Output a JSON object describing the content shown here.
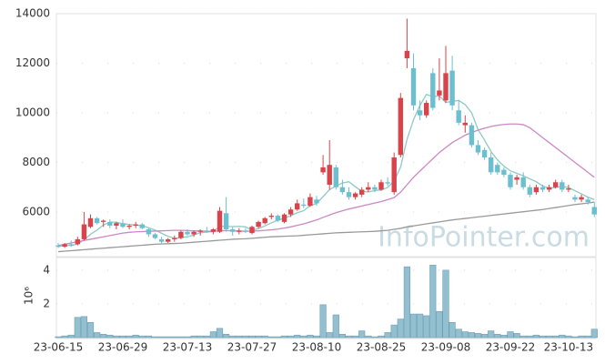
{
  "chart_data": {
    "type": "candlestick",
    "watermark": "InfoPointer.com",
    "categories": [
      "23-06-15",
      null,
      null,
      null,
      null,
      null,
      null,
      null,
      null,
      null,
      "23-06-29",
      null,
      null,
      null,
      null,
      null,
      null,
      null,
      null,
      null,
      "23-07-13",
      null,
      null,
      null,
      null,
      null,
      null,
      null,
      null,
      null,
      "23-07-27",
      null,
      null,
      null,
      null,
      null,
      null,
      null,
      null,
      null,
      "23-08-10",
      null,
      null,
      null,
      null,
      null,
      null,
      null,
      null,
      null,
      "23-08-25",
      null,
      null,
      null,
      null,
      null,
      null,
      null,
      null,
      null,
      "23-09-08",
      null,
      null,
      null,
      null,
      null,
      null,
      null,
      null,
      null,
      "23-09-22",
      null,
      null,
      null,
      null,
      null,
      null,
      null,
      null,
      "23-10-13",
      null,
      null,
      null,
      null
    ],
    "open": [
      4650,
      4600,
      4700,
      4700,
      4900,
      5400,
      5750,
      5600,
      5600,
      5450,
      5550,
      5400,
      5450,
      5500,
      5300,
      5100,
      4900,
      4800,
      4900,
      4950,
      5200,
      5100,
      5200,
      5250,
      5200,
      5200,
      5950,
      5300,
      5200,
      5250,
      5150,
      5400,
      5550,
      5800,
      5850,
      5600,
      5900,
      6100,
      6300,
      6250,
      6500,
      7600,
      7100,
      7800,
      7000,
      6800,
      6600,
      6700,
      6900,
      7000,
      6900,
      7200,
      6800,
      8300,
      12200,
      11800,
      10100,
      9900,
      11600,
      10700,
      10500,
      11700,
      10100,
      9500,
      9500,
      8700,
      8500,
      8200,
      7900,
      7700,
      7500,
      7300,
      7400,
      7000,
      6800,
      7000,
      6900,
      7000,
      7200,
      6900,
      6600,
      6500,
      6500,
      6200
    ],
    "high": [
      4750,
      4750,
      4850,
      5000,
      6000,
      5900,
      5800,
      5700,
      5700,
      5600,
      5700,
      5500,
      5600,
      5550,
      5350,
      5150,
      5000,
      4950,
      5050,
      5250,
      5300,
      5250,
      5300,
      5400,
      5350,
      6200,
      6600,
      5400,
      5350,
      5350,
      5450,
      5650,
      5800,
      5950,
      5900,
      5950,
      6200,
      6500,
      6550,
      6750,
      6650,
      8300,
      8900,
      7900,
      7300,
      7000,
      6800,
      7000,
      7200,
      7100,
      7300,
      7400,
      8400,
      10800,
      13800,
      12400,
      10500,
      10500,
      11800,
      12200,
      12700,
      12300,
      10500,
      9900,
      9600,
      8900,
      8600,
      8400,
      8000,
      7800,
      7600,
      7500,
      7600,
      7100,
      7100,
      7100,
      7100,
      7300,
      7300,
      7100,
      6700,
      6700,
      6600,
      6400
    ],
    "low": [
      4550,
      4550,
      4600,
      4650,
      4850,
      5350,
      5500,
      5400,
      5350,
      5300,
      5350,
      5300,
      5350,
      5300,
      5000,
      4900,
      4700,
      4750,
      4800,
      4900,
      5050,
      5000,
      5050,
      5150,
      5100,
      5150,
      5200,
      5050,
      5100,
      5150,
      5100,
      5350,
      5500,
      5700,
      5600,
      5550,
      5800,
      6050,
      6150,
      6200,
      6250,
      7500,
      6900,
      6900,
      6700,
      6500,
      6500,
      6600,
      6800,
      6800,
      6850,
      7050,
      6700,
      8200,
      11800,
      10100,
      9700,
      9800,
      10100,
      10500,
      10400,
      10100,
      9500,
      9200,
      8600,
      8300,
      8100,
      7500,
      7500,
      7400,
      6900,
      7100,
      6900,
      6600,
      6700,
      6800,
      6800,
      6950,
      6800,
      6800,
      6400,
      6400,
      6300,
      5800
    ],
    "close": [
      4600,
      4700,
      4650,
      4900,
      5500,
      5750,
      5550,
      5650,
      5450,
      5550,
      5400,
      5450,
      5500,
      5350,
      5100,
      4950,
      4800,
      4900,
      4950,
      5200,
      5100,
      5200,
      5250,
      5200,
      5300,
      6050,
      5300,
      5200,
      5250,
      5200,
      5400,
      5600,
      5750,
      5850,
      5650,
      5900,
      6100,
      6350,
      6250,
      6600,
      6350,
      7800,
      7900,
      7000,
      6800,
      6600,
      6750,
      6900,
      7000,
      6900,
      7200,
      7150,
      8200,
      10600,
      12500,
      10300,
      9900,
      10400,
      10200,
      10900,
      11600,
      10300,
      9600,
      9600,
      8700,
      8400,
      8200,
      7600,
      7600,
      7500,
      7000,
      7400,
      7000,
      6700,
      7000,
      6900,
      7000,
      7200,
      6900,
      6950,
      6500,
      6600,
      6400,
      5900
    ],
    "up_color": "#d9434a",
    "down_color": "#6cbfcf",
    "moving_averages": [
      {
        "color": "#8ccac4",
        "values": [
          4600,
          4650,
          4650,
          4710,
          4870,
          5100,
          5270,
          5480,
          5590,
          5590,
          5520,
          5500,
          5470,
          5450,
          5360,
          5270,
          5140,
          5020,
          4940,
          4970,
          5000,
          5070,
          5170,
          5190,
          5210,
          5420,
          5420,
          5410,
          5420,
          5400,
          5270,
          5330,
          5440,
          5560,
          5670,
          5750,
          5850,
          5970,
          6050,
          6260,
          6340,
          6620,
          6900,
          7050,
          7170,
          7220,
          7020,
          6830,
          6810,
          6860,
          6890,
          6990,
          7250,
          7810,
          8930,
          9720,
          10300,
          10740,
          10650,
          10680,
          10420,
          10460,
          10500,
          10330,
          10000,
          9320,
          8900,
          8440,
          8100,
          7850,
          7660,
          7560,
          7460,
          7340,
          7220,
          7050,
          6960,
          6990,
          7030,
          6990,
          6860,
          6730,
          6600,
          6500
        ]
      },
      {
        "color": "#cc88c4",
        "values": [
          4650,
          4700,
          4750,
          4800,
          4850,
          4900,
          4950,
          5000,
          5050,
          5100,
          5150,
          5180,
          5200,
          5210,
          5220,
          5230,
          5240,
          5250,
          5260,
          5260,
          5250,
          5240,
          5230,
          5220,
          5220,
          5240,
          5250,
          5240,
          5230,
          5220,
          5230,
          5240,
          5260,
          5280,
          5310,
          5350,
          5400,
          5460,
          5520,
          5600,
          5680,
          5780,
          5880,
          5970,
          6050,
          6120,
          6180,
          6240,
          6300,
          6360,
          6420,
          6500,
          6580,
          6800,
          7100,
          7400,
          7650,
          7900,
          8150,
          8400,
          8600,
          8800,
          8950,
          9100,
          9200,
          9300,
          9380,
          9450,
          9500,
          9530,
          9550,
          9550,
          9520,
          9400,
          9200,
          9000,
          8800,
          8600,
          8400,
          8200,
          8000,
          7800,
          7600,
          7400
        ]
      },
      {
        "color": "#999999",
        "values": [
          4400,
          4420,
          4440,
          4460,
          4480,
          4500,
          4520,
          4540,
          4560,
          4580,
          4600,
          4620,
          4640,
          4660,
          4680,
          4700,
          4710,
          4720,
          4730,
          4740,
          4760,
          4780,
          4800,
          4820,
          4840,
          4860,
          4880,
          4900,
          4910,
          4920,
          4940,
          4960,
          4980,
          5000,
          5010,
          5020,
          5030,
          5040,
          5060,
          5080,
          5100,
          5120,
          5140,
          5160,
          5170,
          5180,
          5190,
          5200,
          5210,
          5220,
          5240,
          5260,
          5300,
          5340,
          5400,
          5440,
          5480,
          5520,
          5560,
          5600,
          5640,
          5680,
          5710,
          5740,
          5770,
          5800,
          5830,
          5860,
          5890,
          5920,
          5950,
          5980,
          6010,
          6040,
          6070,
          6100,
          6140,
          6180,
          6220,
          6260,
          6300,
          6330,
          6360,
          6400
        ]
      }
    ],
    "ylim": [
      4200,
      14000
    ],
    "yticks": [
      6000,
      8000,
      10000,
      12000,
      14000
    ],
    "grid": true,
    "volume": {
      "axis_label": "10⁶",
      "color": "#93c0d0",
      "ylim": [
        0,
        4.75
      ],
      "yticks": [
        2,
        4
      ],
      "values": [
        0.05,
        0.1,
        0.15,
        1.2,
        1.25,
        0.9,
        0.3,
        0.2,
        0.15,
        0.1,
        0.1,
        0.1,
        0.15,
        0.1,
        0.1,
        0.05,
        0.05,
        0.05,
        0.05,
        0.05,
        0.05,
        0.1,
        0.1,
        0.1,
        0.35,
        0.55,
        0.2,
        0.1,
        0.1,
        0.1,
        0.1,
        0.1,
        0.1,
        0.05,
        0.05,
        0.1,
        0.1,
        0.15,
        0.1,
        0.15,
        0.1,
        1.95,
        0.3,
        1.35,
        0.2,
        0.1,
        0.1,
        0.4,
        0.1,
        0.05,
        0.1,
        0.3,
        0.75,
        1.1,
        4.2,
        1.4,
        1.4,
        1.3,
        4.3,
        1.55,
        4.0,
        0.9,
        0.5,
        0.35,
        0.3,
        0.25,
        0.2,
        0.4,
        0.2,
        0.15,
        0.35,
        0.25,
        0.1,
        0.1,
        0.15,
        0.1,
        0.1,
        0.1,
        0.15,
        0.1,
        0.05,
        0.1,
        0.1,
        0.5
      ]
    }
  }
}
